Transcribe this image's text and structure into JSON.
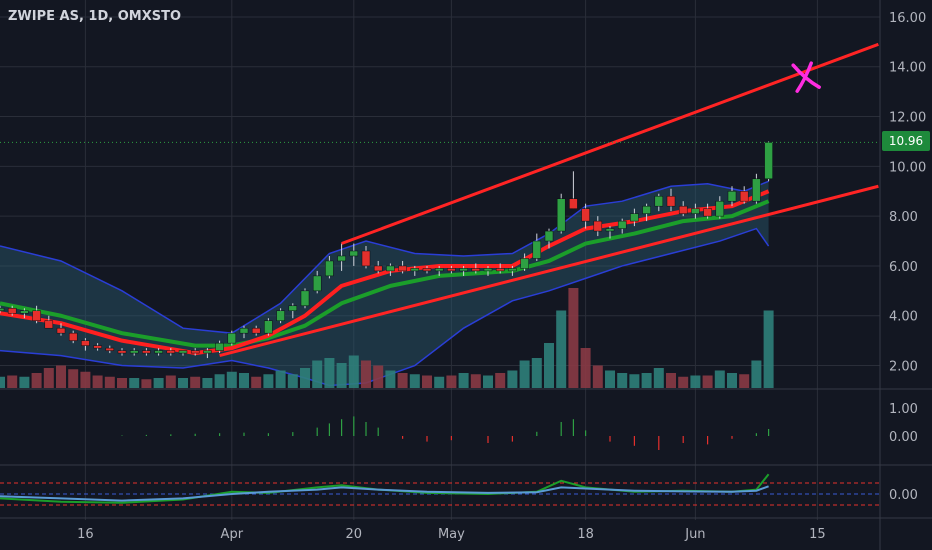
{
  "title": "ZWIPE AS, 1D, OMXSTO",
  "current_price_label": "10.96",
  "colors": {
    "background": "#131722",
    "grid": "#2a2e39",
    "up": "#2ea043",
    "down": "#e5302c",
    "bb_fill": "#2b5a6e",
    "bb_line": "#2a3ed6",
    "ema_fast": "#ff2020",
    "ema_slow": "#1b9e2a",
    "trendline": "#ff2424",
    "marker": "#ff2ce0",
    "text": "#b2b5be"
  },
  "x_axis_labels": [
    {
      "label": "16",
      "day": 7
    },
    {
      "label": "Apr",
      "day": 19
    },
    {
      "label": "20",
      "day": 29
    },
    {
      "label": "May",
      "day": 37
    },
    {
      "label": "18",
      "day": 48
    },
    {
      "label": "Jun",
      "day": 57
    },
    {
      "label": "15",
      "day": 67
    }
  ],
  "chart_data": [
    {
      "type": "candlestick",
      "title": "ZWIPE AS, 1D, OMXSTO",
      "y_ticks": [
        "2.00",
        "4.00",
        "6.00",
        "8.00",
        "10.00",
        "12.00",
        "14.00",
        "16.00"
      ],
      "ylim": [
        1,
        16.6
      ],
      "xlim": [
        0,
        72
      ],
      "last_price": 10.96,
      "candles": [
        [
          0,
          4.2,
          4.4,
          4.1,
          4.3,
          0.45
        ],
        [
          1,
          4.3,
          4.4,
          4.0,
          4.1,
          0.5
        ],
        [
          2,
          4.1,
          4.3,
          3.9,
          4.2,
          0.45
        ],
        [
          3,
          4.2,
          4.4,
          3.7,
          3.8,
          0.6
        ],
        [
          4,
          3.8,
          4.0,
          3.6,
          3.5,
          0.8
        ],
        [
          5,
          3.5,
          3.7,
          3.2,
          3.3,
          0.9
        ],
        [
          6,
          3.3,
          3.4,
          2.9,
          3.0,
          0.75
        ],
        [
          7,
          3.0,
          3.1,
          2.6,
          2.8,
          0.65
        ],
        [
          8,
          2.8,
          2.9,
          2.6,
          2.7,
          0.5
        ],
        [
          9,
          2.7,
          2.8,
          2.5,
          2.6,
          0.45
        ],
        [
          10,
          2.6,
          2.7,
          2.4,
          2.5,
          0.4
        ],
        [
          11,
          2.5,
          2.7,
          2.4,
          2.6,
          0.4
        ],
        [
          12,
          2.6,
          2.7,
          2.4,
          2.5,
          0.35
        ],
        [
          13,
          2.5,
          2.7,
          2.4,
          2.6,
          0.4
        ],
        [
          14,
          2.6,
          2.7,
          2.4,
          2.5,
          0.5
        ],
        [
          15,
          2.5,
          2.6,
          2.4,
          2.6,
          0.4
        ],
        [
          16,
          2.6,
          2.7,
          2.4,
          2.5,
          0.45
        ],
        [
          17,
          2.5,
          2.7,
          2.3,
          2.6,
          0.4
        ],
        [
          18,
          2.6,
          3.0,
          2.5,
          2.9,
          0.55
        ],
        [
          19,
          2.9,
          3.4,
          2.8,
          3.3,
          0.65
        ],
        [
          20,
          3.3,
          3.6,
          3.1,
          3.5,
          0.6
        ],
        [
          21,
          3.5,
          3.6,
          3.2,
          3.3,
          0.45
        ],
        [
          22,
          3.3,
          3.9,
          3.2,
          3.8,
          0.55
        ],
        [
          23,
          3.8,
          4.3,
          3.7,
          4.2,
          0.7
        ],
        [
          24,
          4.2,
          4.5,
          3.9,
          4.4,
          0.55
        ],
        [
          25,
          4.4,
          5.1,
          4.3,
          5.0,
          0.8
        ],
        [
          26,
          5.0,
          5.8,
          4.9,
          5.6,
          1.1
        ],
        [
          27,
          5.6,
          6.4,
          5.5,
          6.2,
          1.2
        ],
        [
          28,
          6.2,
          6.9,
          5.8,
          6.4,
          1.0
        ],
        [
          29,
          6.4,
          6.9,
          6.0,
          6.6,
          1.3
        ],
        [
          30,
          6.6,
          6.8,
          5.9,
          6.0,
          1.1
        ],
        [
          31,
          6.0,
          6.2,
          5.7,
          5.8,
          0.9
        ],
        [
          32,
          5.8,
          6.1,
          5.6,
          6.0,
          0.7
        ],
        [
          33,
          6.0,
          6.2,
          5.7,
          5.8,
          0.6
        ],
        [
          34,
          5.8,
          6.0,
          5.6,
          5.9,
          0.55
        ],
        [
          35,
          5.9,
          6.0,
          5.7,
          5.8,
          0.5
        ],
        [
          36,
          5.8,
          6.0,
          5.6,
          5.9,
          0.45
        ],
        [
          37,
          5.9,
          6.0,
          5.7,
          5.8,
          0.5
        ],
        [
          38,
          5.8,
          6.0,
          5.6,
          5.9,
          0.6
        ],
        [
          39,
          5.9,
          6.1,
          5.7,
          5.8,
          0.55
        ],
        [
          40,
          5.8,
          6.0,
          5.6,
          5.9,
          0.5
        ],
        [
          41,
          5.9,
          6.1,
          5.7,
          5.8,
          0.6
        ],
        [
          42,
          5.8,
          6.0,
          5.6,
          5.9,
          0.7
        ],
        [
          43,
          5.9,
          6.5,
          5.8,
          6.3,
          1.1
        ],
        [
          44,
          6.3,
          7.3,
          6.2,
          7.0,
          1.2
        ],
        [
          45,
          7.0,
          7.5,
          6.7,
          7.4,
          1.8
        ],
        [
          46,
          7.4,
          8.9,
          7.3,
          8.7,
          3.1
        ],
        [
          47,
          8.7,
          9.8,
          8.3,
          8.3,
          4.0
        ],
        [
          48,
          8.3,
          8.5,
          7.5,
          7.8,
          1.6
        ],
        [
          49,
          7.8,
          8.0,
          7.2,
          7.4,
          0.9
        ],
        [
          50,
          7.4,
          7.6,
          7.1,
          7.5,
          0.7
        ],
        [
          51,
          7.5,
          7.9,
          7.3,
          7.8,
          0.6
        ],
        [
          52,
          7.8,
          8.3,
          7.6,
          8.1,
          0.55
        ],
        [
          53,
          8.1,
          8.5,
          7.8,
          8.4,
          0.6
        ],
        [
          54,
          8.4,
          8.9,
          8.2,
          8.8,
          0.8
        ],
        [
          55,
          8.8,
          9.1,
          8.2,
          8.4,
          0.6
        ],
        [
          56,
          8.4,
          8.6,
          8.0,
          8.1,
          0.45
        ],
        [
          57,
          8.1,
          8.5,
          7.9,
          8.3,
          0.5
        ],
        [
          58,
          8.3,
          8.5,
          7.9,
          8.0,
          0.5
        ],
        [
          59,
          8.0,
          8.8,
          7.9,
          8.6,
          0.7
        ],
        [
          60,
          8.6,
          9.2,
          8.4,
          9.0,
          0.6
        ],
        [
          61,
          9.0,
          9.2,
          8.5,
          8.6,
          0.55
        ],
        [
          62,
          8.6,
          9.7,
          8.5,
          9.5,
          1.1
        ],
        [
          63,
          9.5,
          11.0,
          9.4,
          10.96,
          3.1
        ]
      ],
      "ema_fast": [
        [
          0,
          4.1
        ],
        [
          5,
          3.7
        ],
        [
          10,
          3.0
        ],
        [
          16,
          2.5
        ],
        [
          19,
          2.7
        ],
        [
          22,
          3.2
        ],
        [
          25,
          4.0
        ],
        [
          28,
          5.2
        ],
        [
          32,
          5.8
        ],
        [
          36,
          6.0
        ],
        [
          42,
          6.0
        ],
        [
          45,
          6.8
        ],
        [
          48,
          7.5
        ],
        [
          52,
          7.8
        ],
        [
          56,
          8.2
        ],
        [
          60,
          8.4
        ],
        [
          63,
          9.0
        ]
      ],
      "ema_slow": [
        [
          0,
          4.5
        ],
        [
          5,
          4.0
        ],
        [
          10,
          3.3
        ],
        [
          16,
          2.8
        ],
        [
          19,
          2.8
        ],
        [
          22,
          3.1
        ],
        [
          25,
          3.6
        ],
        [
          28,
          4.5
        ],
        [
          32,
          5.2
        ],
        [
          36,
          5.6
        ],
        [
          42,
          5.8
        ],
        [
          45,
          6.2
        ],
        [
          48,
          6.9
        ],
        [
          52,
          7.3
        ],
        [
          56,
          7.8
        ],
        [
          60,
          8.0
        ],
        [
          63,
          8.6
        ]
      ],
      "bollinger_upper": [
        [
          0,
          6.8
        ],
        [
          5,
          6.2
        ],
        [
          10,
          5.0
        ],
        [
          15,
          3.5
        ],
        [
          19,
          3.3
        ],
        [
          23,
          4.5
        ],
        [
          27,
          6.5
        ],
        [
          30,
          7.0
        ],
        [
          34,
          6.5
        ],
        [
          38,
          6.4
        ],
        [
          42,
          6.5
        ],
        [
          45,
          7.3
        ],
        [
          48,
          8.4
        ],
        [
          51,
          8.6
        ],
        [
          55,
          9.2
        ],
        [
          58,
          9.3
        ],
        [
          61,
          9.0
        ],
        [
          63,
          9.4
        ]
      ],
      "bollinger_lower": [
        [
          0,
          2.6
        ],
        [
          5,
          2.4
        ],
        [
          10,
          2.0
        ],
        [
          15,
          1.9
        ],
        [
          19,
          2.2
        ],
        [
          22,
          1.9
        ],
        [
          25,
          1.5
        ],
        [
          27,
          1.2
        ],
        [
          30,
          1.3
        ],
        [
          34,
          2.0
        ],
        [
          38,
          3.5
        ],
        [
          42,
          4.6
        ],
        [
          45,
          5.0
        ],
        [
          48,
          5.5
        ],
        [
          51,
          6.0
        ],
        [
          55,
          6.5
        ],
        [
          59,
          7.0
        ],
        [
          62,
          7.5
        ],
        [
          63,
          6.8
        ]
      ],
      "trendline_upper": [
        [
          28,
          6.9
        ],
        [
          72,
          14.9
        ]
      ],
      "trendline_lower": [
        [
          18,
          2.4
        ],
        [
          72,
          9.2
        ]
      ],
      "marker": [
        [
          66,
          13.5
        ]
      ]
    },
    {
      "type": "bar",
      "title": "",
      "y_ticks": [
        "0.00",
        "1.00"
      ],
      "ylim": [
        -1,
        1
      ],
      "histogram": [
        [
          10,
          0.02
        ],
        [
          12,
          0.04
        ],
        [
          14,
          0.06
        ],
        [
          16,
          0.08
        ],
        [
          18,
          0.1
        ],
        [
          20,
          0.12
        ],
        [
          22,
          0.1
        ],
        [
          24,
          0.14
        ],
        [
          26,
          0.3
        ],
        [
          27,
          0.45
        ],
        [
          28,
          0.6
        ],
        [
          29,
          0.7
        ],
        [
          30,
          0.5
        ],
        [
          31,
          0.3
        ],
        [
          33,
          -0.1
        ],
        [
          35,
          -0.2
        ],
        [
          37,
          -0.15
        ],
        [
          40,
          -0.25
        ],
        [
          42,
          -0.2
        ],
        [
          44,
          0.15
        ],
        [
          46,
          0.5
        ],
        [
          47,
          0.6
        ],
        [
          48,
          0.2
        ],
        [
          50,
          -0.2
        ],
        [
          52,
          -0.35
        ],
        [
          54,
          -0.5
        ],
        [
          56,
          -0.25
        ],
        [
          58,
          -0.3
        ],
        [
          60,
          -0.1
        ],
        [
          62,
          0.1
        ],
        [
          63,
          0.25
        ]
      ]
    },
    {
      "type": "line",
      "title": "",
      "y_ticks": [
        "0.00"
      ],
      "ylim": [
        -1,
        1
      ],
      "series": [
        {
          "values": [
            [
              0,
              -0.2
            ],
            [
              5,
              -0.35
            ],
            [
              10,
              -0.4
            ],
            [
              15,
              -0.25
            ],
            [
              19,
              0.1
            ],
            [
              22,
              0.05
            ],
            [
              26,
              0.3
            ],
            [
              28,
              0.4
            ],
            [
              31,
              0.2
            ],
            [
              35,
              0.05
            ],
            [
              40,
              0.0
            ],
            [
              44,
              0.1
            ],
            [
              46,
              0.6
            ],
            [
              48,
              0.3
            ],
            [
              52,
              0.1
            ],
            [
              56,
              0.15
            ],
            [
              60,
              0.1
            ],
            [
              62,
              0.2
            ],
            [
              63,
              0.9
            ]
          ]
        },
        {
          "values": [
            [
              0,
              -0.1
            ],
            [
              5,
              -0.2
            ],
            [
              10,
              -0.3
            ],
            [
              15,
              -0.2
            ],
            [
              19,
              0.0
            ],
            [
              22,
              0.1
            ],
            [
              26,
              0.2
            ],
            [
              28,
              0.3
            ],
            [
              31,
              0.2
            ],
            [
              35,
              0.1
            ],
            [
              40,
              0.05
            ],
            [
              44,
              0.08
            ],
            [
              46,
              0.3
            ],
            [
              48,
              0.25
            ],
            [
              52,
              0.15
            ],
            [
              56,
              0.12
            ],
            [
              60,
              0.1
            ],
            [
              62,
              0.15
            ],
            [
              63,
              0.35
            ]
          ]
        }
      ],
      "band": [
        -0.5,
        0.5
      ]
    }
  ]
}
